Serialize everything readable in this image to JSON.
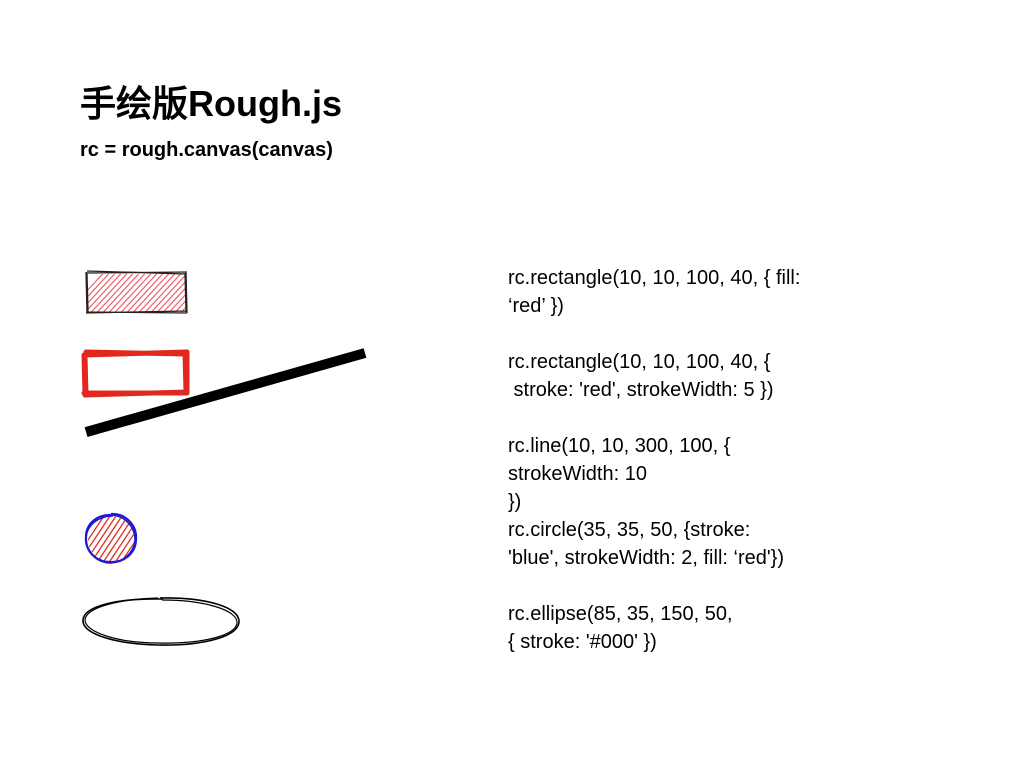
{
  "slide": {
    "title": "手绘版Rough.js",
    "subtitle": "rc = rough.canvas(canvas)"
  },
  "code_lines": [
    "rc.rectangle(10, 10, 100, 40, { fill:",
    "‘red’ })",
    "",
    "rc.rectangle(10, 10, 100, 40, {",
    " stroke: 'red', strokeWidth: 5 })",
    "",
    "rc.line(10, 10, 300, 100, {",
    "strokeWidth: 10",
    "})",
    "rc.circle(35, 35, 50, {stroke:",
    "'blue', strokeWidth: 2, fill: ‘red'})",
    "",
    "rc.ellipse(85, 35, 150, 50,",
    "{ stroke: '#000' })"
  ],
  "colors": {
    "red": "#e0281e",
    "hatch_red": "#e8626a",
    "blue": "#1b1bd6",
    "black": "#000000"
  }
}
